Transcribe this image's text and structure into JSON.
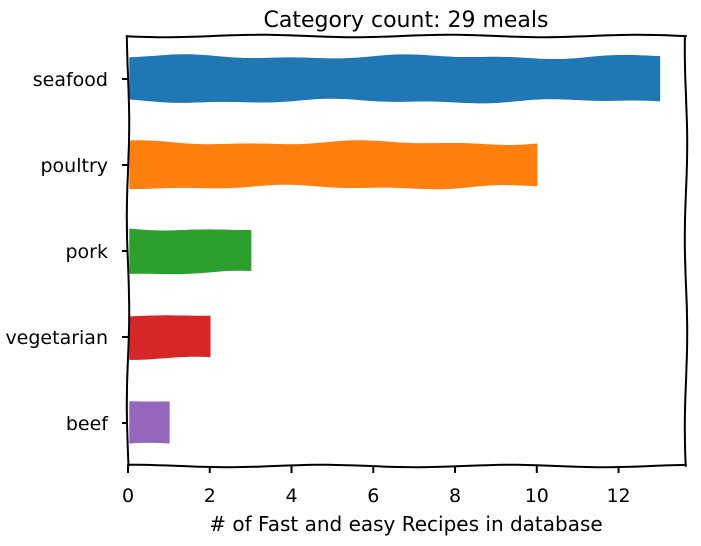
{
  "chart_data": {
    "type": "bar",
    "orientation": "horizontal",
    "title": "Category count: 29 meals",
    "xlabel": "# of Fast and easy Recipes in database",
    "ylabel": "",
    "categories": [
      "seafood",
      "poultry",
      "pork",
      "vegetarian",
      "beef"
    ],
    "values": [
      13,
      10,
      3,
      2,
      1
    ],
    "colors": [
      "#1f77b4",
      "#ff7f0e",
      "#2ca02c",
      "#d62728",
      "#9467bd"
    ],
    "xlim": [
      0,
      13.65
    ],
    "xticks": [
      0,
      2,
      4,
      6,
      8,
      10,
      12
    ],
    "grid": false,
    "legend": "none",
    "style": "hand-drawn"
  }
}
